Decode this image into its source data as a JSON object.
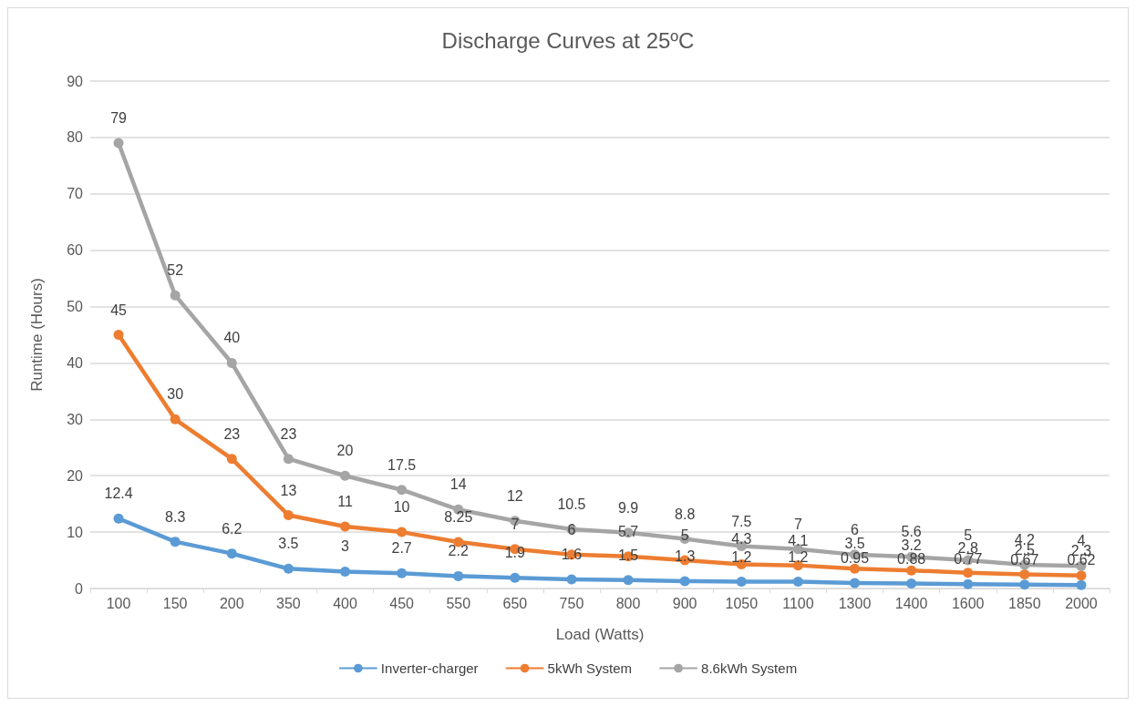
{
  "chart_data": {
    "type": "line",
    "title": "Discharge Curves at 25ºC",
    "xlabel": "Load (Watts)",
    "ylabel": "Runtime (Hours)",
    "categories": [
      "100",
      "150",
      "200",
      "350",
      "400",
      "450",
      "550",
      "650",
      "750",
      "800",
      "900",
      "1050",
      "1100",
      "1300",
      "1400",
      "1600",
      "1850",
      "2000"
    ],
    "series": [
      {
        "name": "Inverter-charger",
        "color": "#5b9bd5",
        "values": [
          12.4,
          8.3,
          6.2,
          3.5,
          3,
          2.7,
          2.2,
          1.9,
          1.6,
          1.5,
          1.3,
          1.2,
          1.2,
          0.95,
          0.88,
          0.77,
          0.67,
          0.62
        ]
      },
      {
        "name": "5kWh System",
        "color": "#ed7d31",
        "values": [
          45,
          30,
          23,
          13,
          11,
          10,
          8.25,
          7,
          6,
          5.7,
          5,
          4.3,
          4.1,
          3.5,
          3.2,
          2.8,
          2.5,
          2.3
        ]
      },
      {
        "name": "8.6kWh System",
        "color": "#a5a5a5",
        "values": [
          79,
          52,
          40,
          23,
          20,
          17.5,
          14,
          12,
          10.5,
          9.9,
          8.8,
          7.5,
          7,
          6,
          5.6,
          5,
          4.2,
          4
        ]
      }
    ],
    "ylim": [
      0,
      90
    ],
    "yticks": [
      0,
      10,
      20,
      30,
      40,
      50,
      60,
      70,
      80,
      90
    ],
    "grid": "y",
    "legend": "bottom",
    "marker": "circle",
    "line_style": "solid",
    "data_labels": true
  }
}
